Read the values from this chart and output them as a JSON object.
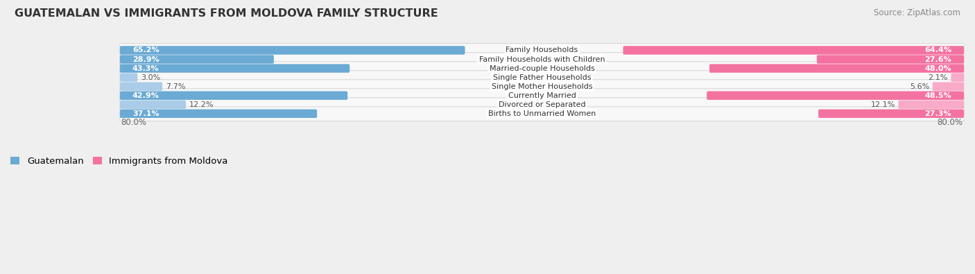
{
  "title": "GUATEMALAN VS IMMIGRANTS FROM MOLDOVA FAMILY STRUCTURE",
  "source": "Source: ZipAtlas.com",
  "categories": [
    "Family Households",
    "Family Households with Children",
    "Married-couple Households",
    "Single Father Households",
    "Single Mother Households",
    "Currently Married",
    "Divorced or Separated",
    "Births to Unmarried Women"
  ],
  "guatemalan_values": [
    65.2,
    28.9,
    43.3,
    3.0,
    7.7,
    42.9,
    12.2,
    37.1
  ],
  "moldova_values": [
    64.4,
    27.6,
    48.0,
    2.1,
    5.6,
    48.5,
    12.1,
    27.3
  ],
  "max_val": 80.0,
  "guatemalan_color_strong": "#6aaad4",
  "guatemalan_color_light": "#aacce8",
  "moldova_color_strong": "#f472a0",
  "moldova_color_light": "#f9aac8",
  "bg_color": "#efefef",
  "row_bg": "#f8f8f8",
  "threshold_strong": 20.0,
  "label_fontsize": 8.0,
  "title_fontsize": 11.5,
  "legend_fontsize": 9.5,
  "source_fontsize": 8.5
}
